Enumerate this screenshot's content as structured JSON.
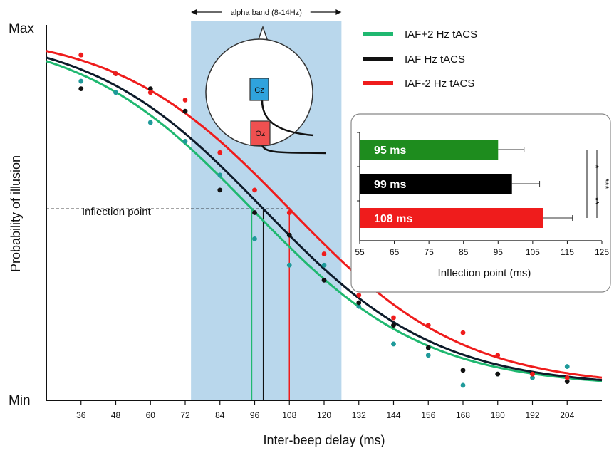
{
  "chart_data": [
    {
      "type": "scatter",
      "x_axis_label": "Inter-beep delay (ms)",
      "y_axis_label": "Probability of illusion",
      "y_min_label": "Min",
      "y_max_label": "Max",
      "x_ticks": [
        36,
        48,
        60,
        72,
        84,
        96,
        108,
        120,
        132,
        144,
        156,
        168,
        180,
        192,
        204
      ],
      "xlim": [
        24,
        216
      ],
      "ylim": [
        0,
        1
      ],
      "band": {
        "label": "alpha band (8-14Hz)",
        "range": [
          74,
          126
        ],
        "color": "#a9cde6"
      },
      "inflection_label": "Inflection point",
      "electrodes": [
        "Cz",
        "Oz"
      ],
      "series": [
        {
          "name": "IAF+2 Hz tACS",
          "color": "#1fb870",
          "dot_color": "#1f9a9a",
          "inflection": 95,
          "x": [
            36,
            48,
            60,
            72,
            84,
            96,
            108,
            120,
            132,
            144,
            156,
            168,
            180,
            192,
            204
          ],
          "y": [
            0.85,
            0.82,
            0.74,
            0.69,
            0.6,
            0.43,
            0.36,
            0.36,
            0.25,
            0.15,
            0.12,
            0.04,
            0.07,
            0.06,
            0.09
          ]
        },
        {
          "name": "IAF Hz tACS",
          "color": "#111111",
          "dot_color": "#111111",
          "inflection": 99,
          "x": [
            36,
            48,
            60,
            72,
            84,
            96,
            108,
            120,
            132,
            144,
            156,
            168,
            180,
            192,
            204
          ],
          "y": [
            0.83,
            0.87,
            0.83,
            0.77,
            0.56,
            0.5,
            0.44,
            0.32,
            0.26,
            0.2,
            0.14,
            0.08,
            0.07,
            0.07,
            0.05
          ]
        },
        {
          "name": "IAF-2 Hz tACS",
          "color": "#ef1c1c",
          "dot_color": "#ef1c1c",
          "inflection": 108,
          "x": [
            36,
            48,
            60,
            72,
            84,
            96,
            108,
            120,
            132,
            144,
            156,
            168,
            180,
            192,
            204
          ],
          "y": [
            0.92,
            0.87,
            0.82,
            0.8,
            0.66,
            0.56,
            0.5,
            0.39,
            0.28,
            0.22,
            0.2,
            0.18,
            0.12,
            0.07,
            0.06
          ]
        }
      ]
    },
    {
      "type": "bar",
      "orientation": "horizontal",
      "xlabel": "Inflection point (ms)",
      "xlim": [
        55,
        125
      ],
      "x_ticks": [
        55,
        65,
        75,
        85,
        95,
        105,
        115,
        125
      ],
      "bars": [
        {
          "label": "95 ms",
          "value": 95,
          "error": 7.5,
          "color": "#1e8c1e"
        },
        {
          "label": "99 ms",
          "value": 99,
          "error": 8,
          "color": "#000000"
        },
        {
          "label": "108 ms",
          "value": 108,
          "error": 8.5,
          "color": "#ef1c1c"
        }
      ],
      "significance": [
        {
          "label": "*",
          "between": [
            0,
            1
          ]
        },
        {
          "label": "**",
          "between": [
            1,
            2
          ]
        },
        {
          "label": "***",
          "between": [
            0,
            2
          ]
        }
      ]
    }
  ]
}
